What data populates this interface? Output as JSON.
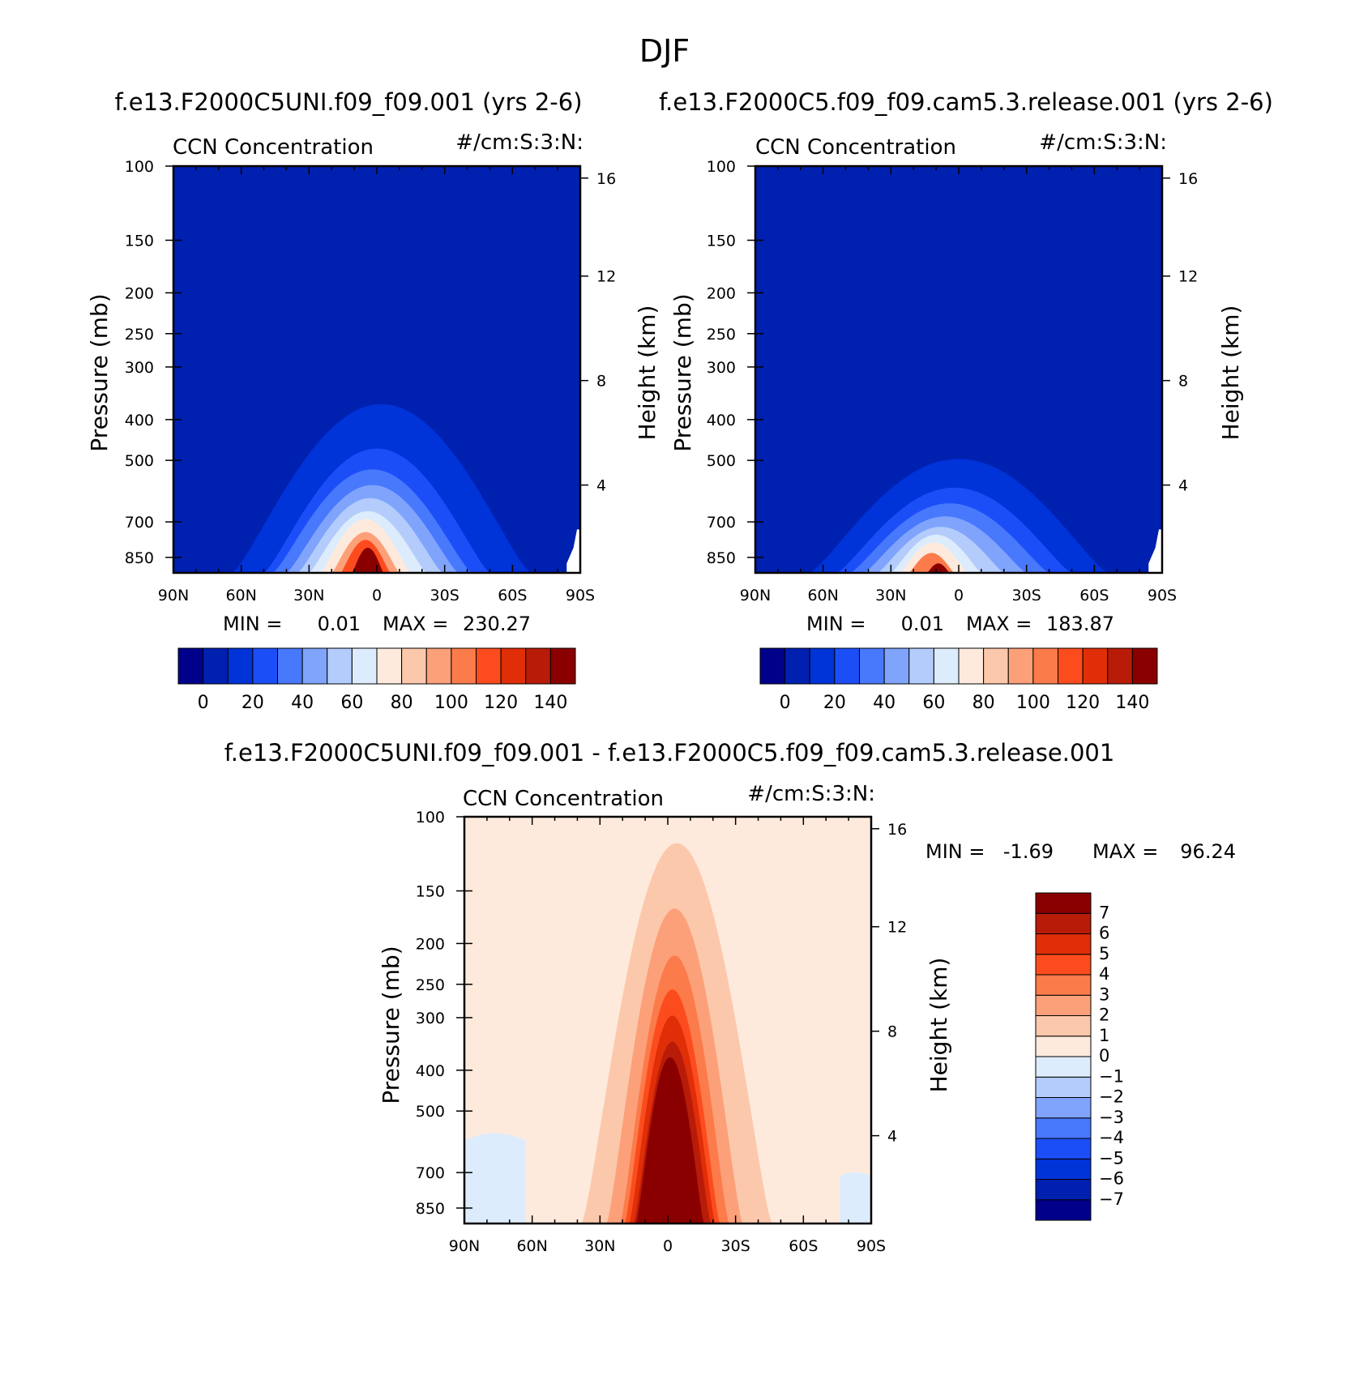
{
  "figure": {
    "season": "DJF"
  },
  "colors": {
    "cool": [
      "#00008b",
      "#0020b0",
      "#0033d8",
      "#1c4ef8",
      "#4878fc",
      "#80a4fc",
      "#b4ccfc",
      "#dcecfc"
    ],
    "warm": [
      "#feeadc",
      "#fcc8ac",
      "#fca07a",
      "#fc7b4a",
      "#fc4c1e",
      "#e02e08",
      "#b81c08",
      "#8a0000"
    ]
  },
  "chart_data": [
    {
      "id": "model_uni",
      "type": "contour",
      "case_title": "f.e13.F2000C5UNI.f09_f09.001 (yrs 2-6)",
      "title_left": "CCN Concentration",
      "title_right": "#/cm:S:3:N:",
      "xlabel": "",
      "ylabel": "Pressure (mb)",
      "ylabel_right": "Height (km)",
      "x_range": [
        -90,
        90
      ],
      "x_ticks": [
        {
          "v": -90,
          "label": "90N"
        },
        {
          "v": -60,
          "label": "60N"
        },
        {
          "v": -30,
          "label": "30N"
        },
        {
          "v": 0,
          "label": "0"
        },
        {
          "v": 30,
          "label": "30S"
        },
        {
          "v": 60,
          "label": "60S"
        },
        {
          "v": 90,
          "label": "90S"
        }
      ],
      "y_range_mb": [
        925,
        100
      ],
      "y_ticks": [
        {
          "v": 100,
          "label": "100"
        },
        {
          "v": 150,
          "label": "150"
        },
        {
          "v": 200,
          "label": "200"
        },
        {
          "v": 250,
          "label": "250"
        },
        {
          "v": 300,
          "label": "300"
        },
        {
          "v": 400,
          "label": "400"
        },
        {
          "v": 500,
          "label": "500"
        },
        {
          "v": 700,
          "label": "700"
        },
        {
          "v": 850,
          "label": "850"
        }
      ],
      "height_ticks_km": [
        {
          "v": 4,
          "label": "4"
        },
        {
          "v": 8,
          "label": "8"
        },
        {
          "v": 12,
          "label": "12"
        },
        {
          "v": 16,
          "label": "16"
        }
      ],
      "min_label": "MIN =",
      "min_value": "0.01",
      "max_label": "MAX =",
      "max_value": "230.27",
      "colorbar": {
        "levels": [
          0,
          10,
          20,
          30,
          40,
          50,
          60,
          70,
          80,
          90,
          100,
          110,
          120,
          130,
          140
        ],
        "labels": [
          "0",
          "20",
          "40",
          "60",
          "80",
          "100",
          "120",
          "140"
        ],
        "colors": [
          "#00008b",
          "#0020b0",
          "#0033d8",
          "#1c4ef8",
          "#4878fc",
          "#80a4fc",
          "#b4ccfc",
          "#dcecfc",
          "#feeadc",
          "#fcc8ac",
          "#fca07a",
          "#fc7b4a",
          "#fc4c1e",
          "#e02e08",
          "#b81c08",
          "#8a0000"
        ]
      },
      "background_color_index": 1,
      "surface_edge_lat": 84,
      "contours": [
        {
          "color_index": 2,
          "top_km": 7.1,
          "half_width_deg": 66,
          "center_lat": 2
        },
        {
          "color_index": 3,
          "top_km": 5.4,
          "half_width_deg": 50,
          "center_lat": 0
        },
        {
          "color_index": 4,
          "top_km": 4.6,
          "half_width_deg": 44,
          "center_lat": -2
        },
        {
          "color_index": 5,
          "top_km": 4.0,
          "half_width_deg": 38,
          "center_lat": -2
        },
        {
          "color_index": 6,
          "top_km": 3.5,
          "half_width_deg": 32,
          "center_lat": -3
        },
        {
          "color_index": 7,
          "top_km": 3.0,
          "half_width_deg": 26,
          "center_lat": -4
        },
        {
          "color_index": 8,
          "top_km": 2.7,
          "half_width_deg": 20,
          "center_lat": -5
        },
        {
          "color_index": 10,
          "top_km": 2.2,
          "half_width_deg": 15,
          "center_lat": -5
        },
        {
          "color_index": 12,
          "top_km": 1.9,
          "half_width_deg": 11,
          "center_lat": -5
        },
        {
          "color_index": 15,
          "top_km": 1.6,
          "half_width_deg": 7,
          "center_lat": -4
        }
      ]
    },
    {
      "id": "model_control",
      "type": "contour",
      "case_title": "f.e13.F2000C5.f09_f09.cam5.3.release.001 (yrs 2-6)",
      "title_left": "CCN Concentration",
      "title_right": "#/cm:S:3:N:",
      "xlabel": "",
      "ylabel": "Pressure (mb)",
      "ylabel_right": "Height (km)",
      "x_range": [
        -90,
        90
      ],
      "x_ticks": [
        {
          "v": -90,
          "label": "90N"
        },
        {
          "v": -60,
          "label": "60N"
        },
        {
          "v": -30,
          "label": "30N"
        },
        {
          "v": 0,
          "label": "0"
        },
        {
          "v": 30,
          "label": "30S"
        },
        {
          "v": 60,
          "label": "60S"
        },
        {
          "v": 90,
          "label": "90S"
        }
      ],
      "y_range_mb": [
        925,
        100
      ],
      "y_ticks": [
        {
          "v": 100,
          "label": "100"
        },
        {
          "v": 150,
          "label": "150"
        },
        {
          "v": 200,
          "label": "200"
        },
        {
          "v": 250,
          "label": "250"
        },
        {
          "v": 300,
          "label": "300"
        },
        {
          "v": 400,
          "label": "400"
        },
        {
          "v": 500,
          "label": "500"
        },
        {
          "v": 700,
          "label": "700"
        },
        {
          "v": 850,
          "label": "850"
        }
      ],
      "height_ticks_km": [
        {
          "v": 4,
          "label": "4"
        },
        {
          "v": 8,
          "label": "8"
        },
        {
          "v": 12,
          "label": "12"
        },
        {
          "v": 16,
          "label": "16"
        }
      ],
      "min_label": "MIN =",
      "min_value": "0.01",
      "max_label": "MAX =",
      "max_value": "183.87",
      "colorbar": {
        "levels": [
          0,
          10,
          20,
          30,
          40,
          50,
          60,
          70,
          80,
          90,
          100,
          110,
          120,
          130,
          140
        ],
        "labels": [
          "0",
          "20",
          "40",
          "60",
          "80",
          "100",
          "120",
          "140"
        ],
        "colors": [
          "#00008b",
          "#0020b0",
          "#0033d8",
          "#1c4ef8",
          "#4878fc",
          "#80a4fc",
          "#b4ccfc",
          "#dcecfc",
          "#feeadc",
          "#fcc8ac",
          "#fca07a",
          "#fc7b4a",
          "#fc4c1e",
          "#e02e08",
          "#b81c08",
          "#8a0000"
        ]
      },
      "background_color_index": 1,
      "surface_edge_lat": 84,
      "contours": [
        {
          "color_index": 2,
          "top_km": 5.0,
          "half_width_deg": 66,
          "center_lat": 0
        },
        {
          "color_index": 3,
          "top_km": 3.9,
          "half_width_deg": 52,
          "center_lat": -2
        },
        {
          "color_index": 4,
          "top_km": 3.3,
          "half_width_deg": 44,
          "center_lat": -4
        },
        {
          "color_index": 5,
          "top_km": 2.8,
          "half_width_deg": 36,
          "center_lat": -6
        },
        {
          "color_index": 6,
          "top_km": 2.4,
          "half_width_deg": 28,
          "center_lat": -8
        },
        {
          "color_index": 7,
          "top_km": 2.1,
          "half_width_deg": 20,
          "center_lat": -10
        },
        {
          "color_index": 8,
          "top_km": 1.8,
          "half_width_deg": 15,
          "center_lat": -11
        },
        {
          "color_index": 11,
          "top_km": 1.4,
          "half_width_deg": 10,
          "center_lat": -12
        },
        {
          "color_index": 15,
          "top_km": 1.0,
          "half_width_deg": 5,
          "center_lat": -9
        }
      ]
    },
    {
      "id": "difference",
      "type": "contour",
      "case_title": "f.e13.F2000C5UNI.f09_f09.001 - f.e13.F2000C5.f09_f09.cam5.3.release.001",
      "title_left": "CCN Concentration",
      "title_right": "#/cm:S:3:N:",
      "xlabel": "",
      "ylabel": "Pressure (mb)",
      "ylabel_right": "Height (km)",
      "x_range": [
        -90,
        90
      ],
      "x_ticks": [
        {
          "v": -90,
          "label": "90N"
        },
        {
          "v": -60,
          "label": "60N"
        },
        {
          "v": -30,
          "label": "30N"
        },
        {
          "v": 0,
          "label": "0"
        },
        {
          "v": 30,
          "label": "30S"
        },
        {
          "v": 60,
          "label": "60S"
        },
        {
          "v": 90,
          "label": "90S"
        }
      ],
      "y_range_mb": [
        925,
        100
      ],
      "y_ticks": [
        {
          "v": 100,
          "label": "100"
        },
        {
          "v": 150,
          "label": "150"
        },
        {
          "v": 200,
          "label": "200"
        },
        {
          "v": 250,
          "label": "250"
        },
        {
          "v": 300,
          "label": "300"
        },
        {
          "v": 400,
          "label": "400"
        },
        {
          "v": 500,
          "label": "500"
        },
        {
          "v": 700,
          "label": "700"
        },
        {
          "v": 850,
          "label": "850"
        }
      ],
      "height_ticks_km": [
        {
          "v": 4,
          "label": "4"
        },
        {
          "v": 8,
          "label": "8"
        },
        {
          "v": 12,
          "label": "12"
        },
        {
          "v": 16,
          "label": "16"
        }
      ],
      "min_label": "MIN =",
      "min_value": "-1.69",
      "max_label": "MAX =",
      "max_value": "96.24",
      "colorbar": {
        "levels": [
          -7,
          -6,
          -5,
          -4,
          -3,
          -2,
          -1,
          0,
          1,
          2,
          3,
          4,
          5,
          6,
          7
        ],
        "labels": [
          "-7",
          "-6",
          "-5",
          "-4",
          "-3",
          "-2",
          "-1",
          "0",
          "1",
          "2",
          "3",
          "4",
          "5",
          "6",
          "7"
        ],
        "colors": [
          "#00008b",
          "#0020b0",
          "#0033d8",
          "#1c4ef8",
          "#4878fc",
          "#80a4fc",
          "#b4ccfc",
          "#dcecfc",
          "#feeadc",
          "#fcc8ac",
          "#fca07a",
          "#fc7b4a",
          "#fc4c1e",
          "#e02e08",
          "#b81c08",
          "#8a0000"
        ]
      },
      "background_color_index": 8,
      "negative_regions": [
        {
          "color_index": 7,
          "lat_from": -90,
          "lat_to": -63,
          "top_km": 4.1
        },
        {
          "color_index": 7,
          "lat_from": 76,
          "lat_to": 90,
          "top_km": 2.6
        }
      ],
      "contours": [
        {
          "color_index": 9,
          "top_km": 15.2,
          "half_width_deg": 42,
          "center_lat": 4
        },
        {
          "color_index": 10,
          "top_km": 12.7,
          "half_width_deg": 30,
          "center_lat": 3
        },
        {
          "color_index": 11,
          "top_km": 10.9,
          "half_width_deg": 24,
          "center_lat": 3
        },
        {
          "color_index": 12,
          "top_km": 9.6,
          "half_width_deg": 21,
          "center_lat": 2
        },
        {
          "color_index": 13,
          "top_km": 8.6,
          "half_width_deg": 19,
          "center_lat": 2
        },
        {
          "color_index": 14,
          "top_km": 7.6,
          "half_width_deg": 17,
          "center_lat": 2
        },
        {
          "color_index": 15,
          "top_km": 7.0,
          "half_width_deg": 15,
          "center_lat": 1
        }
      ]
    }
  ]
}
